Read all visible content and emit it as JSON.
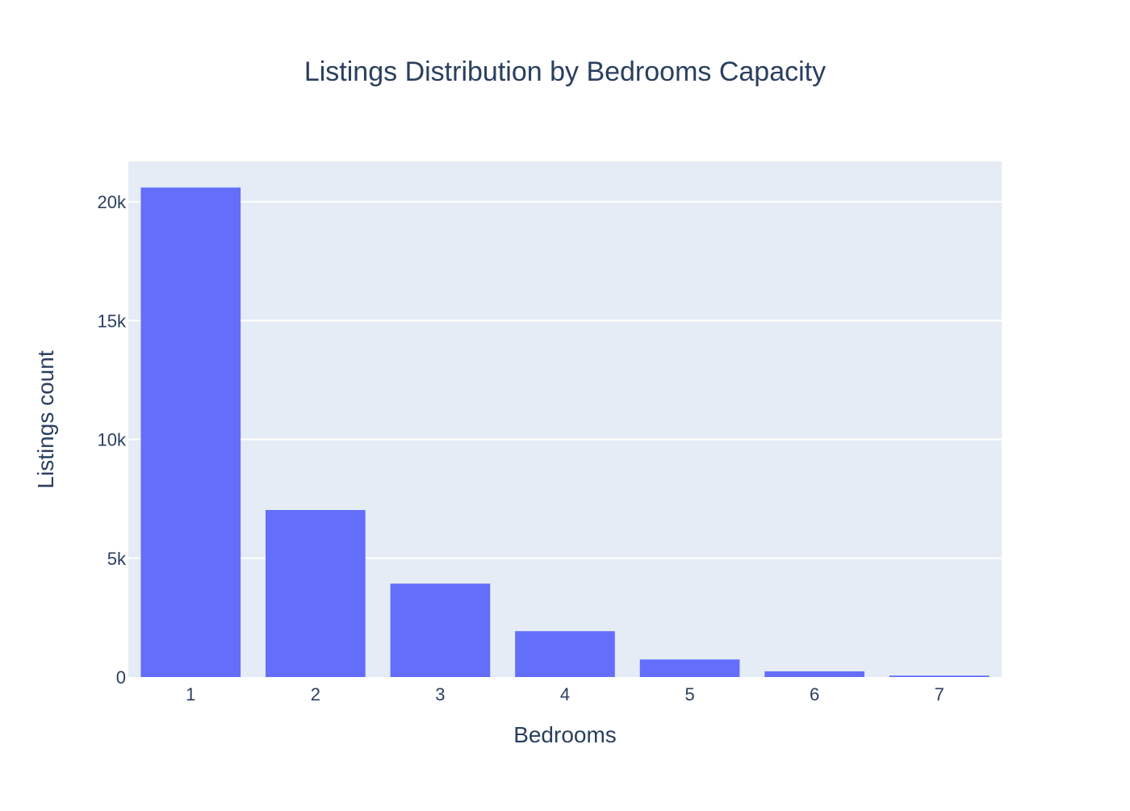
{
  "chart_data": {
    "type": "bar",
    "title": "Listings Distribution by Bedrooms Capacity",
    "xlabel": "Bedrooms",
    "ylabel": "Listings count",
    "categories": [
      "1",
      "2",
      "3",
      "4",
      "5",
      "6",
      "7"
    ],
    "values": [
      20600,
      7030,
      3930,
      1930,
      740,
      240,
      60
    ],
    "ylim": [
      0,
      21700
    ],
    "yticks": [
      0,
      5000,
      10000,
      15000,
      20000
    ],
    "ytick_labels": [
      "0",
      "5k",
      "10k",
      "15k",
      "20k"
    ],
    "grid": true,
    "legend": "none"
  },
  "colors": {
    "bar": "#636efa",
    "plot_background": "#e5ecf6",
    "grid": "#ffffff",
    "text": "#2a3f5f"
  }
}
